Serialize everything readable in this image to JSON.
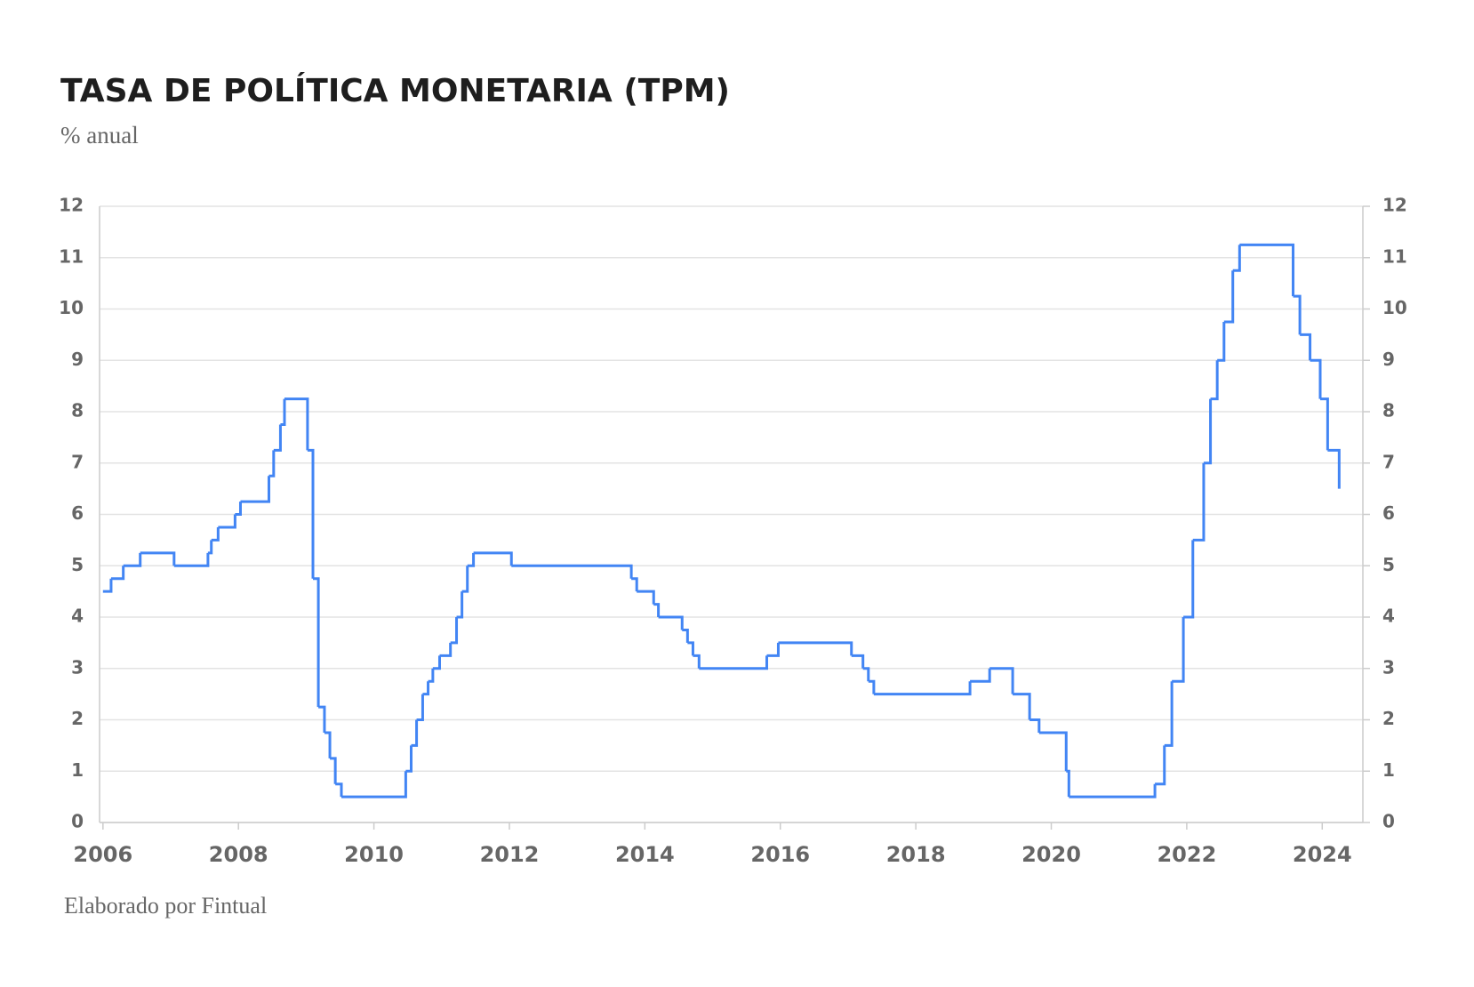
{
  "chart_data": {
    "type": "line",
    "step": "post",
    "title": "TASA DE POLÍTICA MONETARIA (TPM)",
    "subtitle": "% anual",
    "source": "Elaborado por Fintual",
    "x": [
      2006.0,
      2006.12,
      2006.3,
      2006.55,
      2007.05,
      2007.55,
      2007.6,
      2007.7,
      2007.95,
      2008.03,
      2008.45,
      2008.52,
      2008.62,
      2008.68,
      2009.02,
      2009.1,
      2009.18,
      2009.27,
      2009.35,
      2009.43,
      2009.52,
      2010.47,
      2010.55,
      2010.63,
      2010.72,
      2010.8,
      2010.87,
      2010.97,
      2011.13,
      2011.22,
      2011.3,
      2011.38,
      2011.47,
      2012.03,
      2013.8,
      2013.88,
      2014.13,
      2014.2,
      2014.55,
      2014.63,
      2014.71,
      2014.8,
      2015.8,
      2015.97,
      2017.05,
      2017.22,
      2017.3,
      2017.38,
      2018.8,
      2019.09,
      2019.43,
      2019.68,
      2019.82,
      2020.22,
      2020.26,
      2021.53,
      2021.67,
      2021.78,
      2021.95,
      2022.09,
      2022.25,
      2022.35,
      2022.45,
      2022.55,
      2022.68,
      2022.78,
      2023.57,
      2023.67,
      2023.82,
      2023.97,
      2024.08,
      2024.25
    ],
    "series": [
      {
        "color": "#4285f4",
        "values": [
          4.5,
          4.75,
          5.0,
          5.25,
          5.0,
          5.25,
          5.5,
          5.75,
          6.0,
          6.25,
          6.75,
          7.25,
          7.75,
          8.25,
          7.25,
          4.75,
          2.25,
          1.75,
          1.25,
          0.75,
          0.5,
          1.0,
          1.5,
          2.0,
          2.5,
          2.75,
          3.0,
          3.25,
          3.5,
          4.0,
          4.5,
          5.0,
          5.25,
          5.0,
          4.75,
          4.5,
          4.25,
          4.0,
          3.75,
          3.5,
          3.25,
          3.0,
          3.25,
          3.5,
          3.25,
          3.0,
          2.75,
          2.5,
          2.75,
          3.0,
          2.5,
          2.0,
          1.75,
          1.0,
          0.5,
          0.75,
          1.5,
          2.75,
          4.0,
          5.5,
          7.0,
          8.25,
          9.0,
          9.75,
          10.75,
          11.25,
          10.25,
          9.5,
          9.0,
          8.25,
          7.25,
          6.5
        ]
      }
    ],
    "xlim": [
      2005.95,
      2024.6
    ],
    "xticks": [
      2006,
      2008,
      2010,
      2012,
      2014,
      2016,
      2018,
      2020,
      2022,
      2024
    ],
    "ylim": [
      0,
      12
    ],
    "yticks": [
      0,
      1,
      2,
      3,
      4,
      5,
      6,
      7,
      8,
      9,
      10,
      11,
      12
    ],
    "y2lim": [
      0,
      12
    ],
    "y2ticks": [
      0,
      1,
      2,
      3,
      4,
      5,
      6,
      7,
      8,
      9,
      10,
      11,
      12
    ],
    "grid": true
  }
}
